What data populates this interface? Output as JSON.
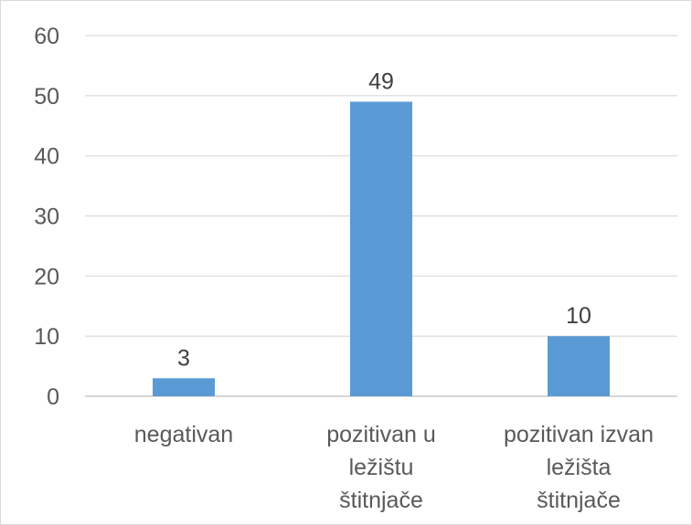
{
  "chart_data": {
    "type": "bar",
    "categories": [
      [
        "negativan"
      ],
      [
        "pozitivan u",
        "ležištu",
        "štitnjače"
      ],
      [
        "pozitivan izvan",
        "ležišta",
        "štitnjače"
      ]
    ],
    "values": [
      3,
      49,
      10
    ],
    "data_labels": [
      "3",
      "49",
      "10"
    ],
    "title": "",
    "xlabel": "",
    "ylabel": "",
    "ylim": [
      0,
      60
    ],
    "yticks": [
      "0",
      "10",
      "20",
      "30",
      "40",
      "50",
      "60"
    ],
    "grid": true,
    "legend": "none",
    "colors": {
      "bar": "#5b9bd5",
      "grid": "#d9d9d9",
      "axis": "#bfbfbf",
      "text": "#595959"
    }
  }
}
